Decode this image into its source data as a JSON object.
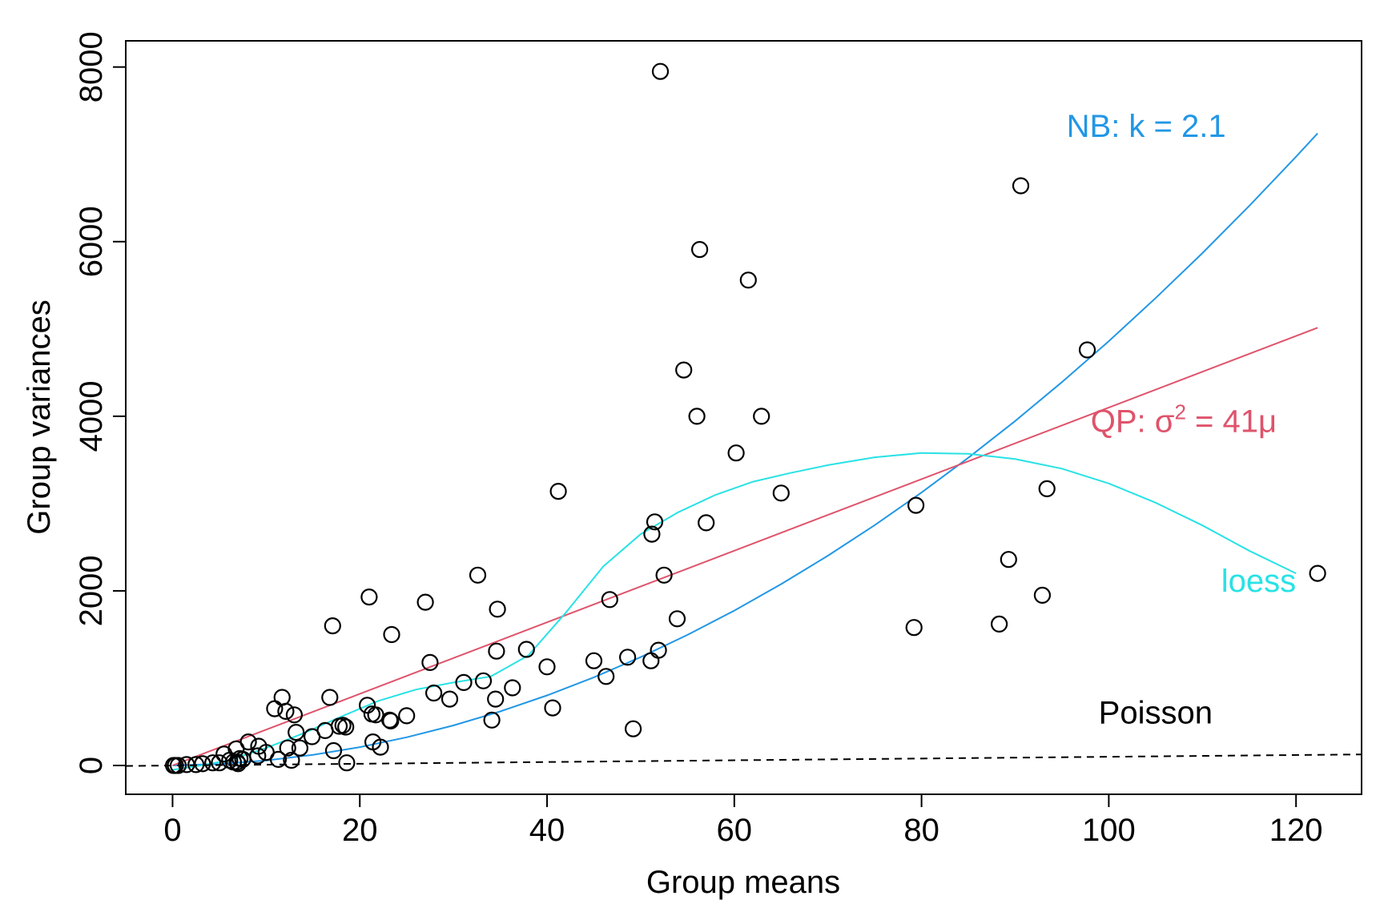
{
  "chart_data": {
    "type": "scatter",
    "xlabel": "Group means",
    "ylabel": "Group variances",
    "xlim": [
      -5,
      127
    ],
    "ylim": [
      -330,
      8300
    ],
    "x_ticks": [
      0,
      20,
      40,
      60,
      80,
      100,
      120
    ],
    "y_ticks": [
      0,
      2000,
      4000,
      6000,
      8000
    ],
    "x_tick_labels": [
      "0",
      "20",
      "40",
      "60",
      "80",
      "100",
      "120"
    ],
    "y_tick_labels": [
      "0",
      "2000",
      "4000",
      "6000",
      "8000"
    ],
    "grid": false,
    "points": [
      [
        0.1,
        0
      ],
      [
        0.3,
        0
      ],
      [
        0.6,
        0
      ],
      [
        1.5,
        10
      ],
      [
        2.5,
        10
      ],
      [
        3.2,
        20
      ],
      [
        4.3,
        30
      ],
      [
        5.0,
        30
      ],
      [
        5.5,
        130
      ],
      [
        6.1,
        60
      ],
      [
        6.5,
        40
      ],
      [
        6.8,
        190
      ],
      [
        6.9,
        40
      ],
      [
        7.0,
        20
      ],
      [
        7.2,
        80
      ],
      [
        7.5,
        70
      ],
      [
        8.1,
        270
      ],
      [
        9.2,
        220
      ],
      [
        9.1,
        110
      ],
      [
        10.0,
        150
      ],
      [
        10.9,
        650
      ],
      [
        11.3,
        70
      ],
      [
        11.7,
        780
      ],
      [
        12.1,
        620
      ],
      [
        12.3,
        200
      ],
      [
        12.7,
        60
      ],
      [
        13.0,
        580
      ],
      [
        13.2,
        380
      ],
      [
        13.6,
        200
      ],
      [
        14.9,
        330
      ],
      [
        16.3,
        400
      ],
      [
        16.8,
        780
      ],
      [
        17.1,
        1600
      ],
      [
        17.2,
        170
      ],
      [
        17.8,
        450
      ],
      [
        18.2,
        460
      ],
      [
        18.5,
        440
      ],
      [
        18.6,
        30
      ],
      [
        20.8,
        690
      ],
      [
        21.0,
        1930
      ],
      [
        21.3,
        590
      ],
      [
        21.4,
        270
      ],
      [
        21.7,
        580
      ],
      [
        22.2,
        210
      ],
      [
        23.2,
        520
      ],
      [
        23.3,
        510
      ],
      [
        23.4,
        1500
      ],
      [
        25.0,
        570
      ],
      [
        27.0,
        1870
      ],
      [
        27.5,
        1180
      ],
      [
        27.9,
        830
      ],
      [
        29.6,
        760
      ],
      [
        31.1,
        950
      ],
      [
        32.6,
        2180
      ],
      [
        33.2,
        970
      ],
      [
        34.1,
        520
      ],
      [
        34.5,
        760
      ],
      [
        34.6,
        1310
      ],
      [
        34.7,
        1790
      ],
      [
        36.3,
        890
      ],
      [
        37.8,
        1330
      ],
      [
        40.0,
        1130
      ],
      [
        40.6,
        660
      ],
      [
        41.2,
        3140
      ],
      [
        45.0,
        1200
      ],
      [
        46.3,
        1020
      ],
      [
        46.7,
        1900
      ],
      [
        48.6,
        1240
      ],
      [
        49.2,
        420
      ],
      [
        51.1,
        1200
      ],
      [
        51.2,
        2650
      ],
      [
        51.5,
        2790
      ],
      [
        51.9,
        1320
      ],
      [
        52.1,
        7950
      ],
      [
        52.5,
        2180
      ],
      [
        53.9,
        1680
      ],
      [
        54.6,
        4530
      ],
      [
        56.0,
        4000
      ],
      [
        56.3,
        5910
      ],
      [
        57.0,
        2780
      ],
      [
        60.2,
        3580
      ],
      [
        61.5,
        5560
      ],
      [
        62.9,
        4000
      ],
      [
        65.0,
        3120
      ],
      [
        79.2,
        1580
      ],
      [
        79.4,
        2980
      ],
      [
        88.3,
        1620
      ],
      [
        89.3,
        2360
      ],
      [
        90.6,
        6640
      ],
      [
        92.9,
        1950
      ],
      [
        93.4,
        3170
      ],
      [
        97.7,
        4760
      ],
      [
        122.3,
        2200
      ]
    ],
    "series": [
      {
        "name": "NB: k = 2.1",
        "color": "#2297e6",
        "x": [
          0,
          5,
          10,
          15,
          20,
          25,
          30,
          35,
          40,
          45,
          50,
          55,
          60,
          65,
          70,
          75,
          80,
          85,
          90,
          95,
          100,
          105,
          110,
          115,
          120,
          122.3
        ],
        "y": [
          0,
          17,
          57,
          122,
          210,
          323,
          459,
          619,
          803,
          1010,
          1241,
          1496,
          1774,
          2077,
          2403,
          2753,
          3127,
          3525,
          3946,
          4391,
          4860,
          5353,
          5869,
          6409,
          6973,
          7240
        ]
      },
      {
        "name": "QP: σ² = 41μ",
        "color": "#df536b",
        "x": [
          0,
          122.3
        ],
        "y": [
          0,
          5014
        ]
      },
      {
        "name": "loess",
        "color": "#28e2e5",
        "x": [
          0,
          3,
          6,
          10,
          14,
          18,
          22,
          26,
          30,
          34,
          38,
          42,
          46,
          50,
          54,
          58,
          62,
          66,
          70,
          75,
          80,
          85,
          90,
          95,
          100,
          105,
          110,
          115,
          120
        ],
        "y": [
          -50,
          0,
          60,
          200,
          370,
          560,
          740,
          870,
          950,
          1020,
          1260,
          1750,
          2280,
          2650,
          2900,
          3100,
          3250,
          3350,
          3440,
          3530,
          3580,
          3570,
          3510,
          3400,
          3230,
          3010,
          2750,
          2460,
          2200
        ]
      },
      {
        "name": "Poisson",
        "color": "#000000",
        "dashed": true,
        "x": [
          -5,
          127
        ],
        "y": [
          -5,
          127
        ]
      }
    ],
    "annotations": [
      {
        "text": "NB: k = 2.1",
        "x": 104,
        "y": 7200,
        "color": "#2297e6"
      },
      {
        "text": "QP: σ² = 41μ",
        "x": 108,
        "y": 3820,
        "color": "#df536b"
      },
      {
        "text": "loess",
        "x": 116,
        "y": 1990,
        "color": "#28e2e5"
      },
      {
        "text": "Poisson",
        "x": 105,
        "y": 480,
        "color": "#000000"
      }
    ]
  }
}
